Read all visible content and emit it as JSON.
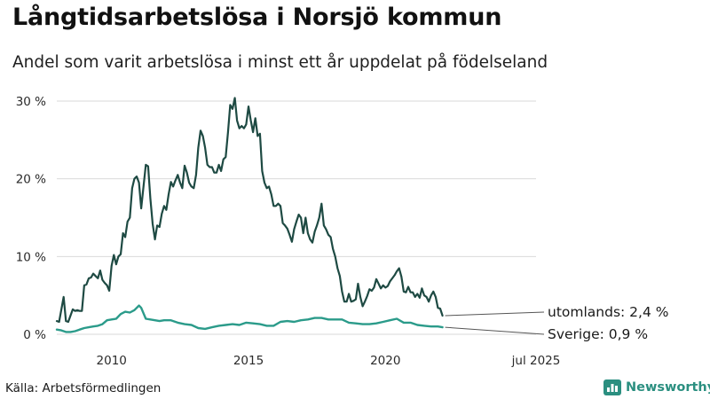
{
  "header": {
    "title": "Långtidsarbetslösa i Norsjö kommun",
    "subtitle": "Andel som varit arbetslösa i minst ett år uppdelat på födelseland"
  },
  "footer": {
    "source": "Källa: Arbetsförmedlingen",
    "brand": "Newsworthy"
  },
  "colors": {
    "utomlands": "#1e4a43",
    "sverige": "#2b9b8a",
    "grid": "#d9d9d9",
    "brand": "#2b8f80"
  },
  "chart_data": {
    "type": "line",
    "x_range": [
      "2008-01",
      "2025-07"
    ],
    "ylim": [
      0,
      32
    ],
    "y_ticks": [
      {
        "value": 0,
        "label": "0 %"
      },
      {
        "value": 10,
        "label": "10 %"
      },
      {
        "value": 20,
        "label": "20 %"
      },
      {
        "value": 30,
        "label": "30 %"
      }
    ],
    "x_ticks": [
      {
        "value": "2010-01",
        "label": "2010"
      },
      {
        "value": "2015-01",
        "label": "2015"
      },
      {
        "value": "2020-01",
        "label": "2020"
      },
      {
        "value": "2025-07",
        "label": "jul 2025"
      }
    ],
    "grid": "horizontal",
    "series": [
      {
        "key": "utomlands",
        "end_label": "utomlands: 2,4 %",
        "points": [
          [
            "2008-01",
            1.7
          ],
          [
            "2008-02",
            1.6
          ],
          [
            "2008-04",
            4.8
          ],
          [
            "2008-05",
            1.7
          ],
          [
            "2008-06",
            1.6
          ],
          [
            "2008-08",
            3.2
          ],
          [
            "2008-09",
            3.0
          ],
          [
            "2008-10",
            3.1
          ],
          [
            "2008-11",
            3.0
          ],
          [
            "2008-12",
            3.0
          ],
          [
            "2009-01",
            6.3
          ],
          [
            "2009-02",
            6.4
          ],
          [
            "2009-03",
            7.2
          ],
          [
            "2009-04",
            7.3
          ],
          [
            "2009-05",
            7.8
          ],
          [
            "2009-06",
            7.5
          ],
          [
            "2009-07",
            7.2
          ],
          [
            "2009-08",
            8.2
          ],
          [
            "2009-09",
            7.0
          ],
          [
            "2009-10",
            6.6
          ],
          [
            "2009-11",
            6.3
          ],
          [
            "2009-12",
            5.6
          ],
          [
            "2010-01",
            8.8
          ],
          [
            "2010-02",
            10.2
          ],
          [
            "2010-03",
            9.0
          ],
          [
            "2010-04",
            10.0
          ],
          [
            "2010-05",
            10.3
          ],
          [
            "2010-06",
            13.0
          ],
          [
            "2010-07",
            12.5
          ],
          [
            "2010-08",
            14.5
          ],
          [
            "2010-09",
            15.0
          ],
          [
            "2010-10",
            18.8
          ],
          [
            "2010-11",
            20.0
          ],
          [
            "2010-12",
            20.3
          ],
          [
            "2011-01",
            19.5
          ],
          [
            "2011-02",
            16.2
          ],
          [
            "2011-03",
            19.0
          ],
          [
            "2011-04",
            21.8
          ],
          [
            "2011-05",
            21.6
          ],
          [
            "2011-06",
            17.5
          ],
          [
            "2011-07",
            14.2
          ],
          [
            "2011-08",
            12.2
          ],
          [
            "2011-09",
            14.0
          ],
          [
            "2011-10",
            13.8
          ],
          [
            "2011-11",
            15.5
          ],
          [
            "2011-12",
            16.5
          ],
          [
            "2012-01",
            16.0
          ],
          [
            "2012-02",
            18.0
          ],
          [
            "2012-03",
            19.6
          ],
          [
            "2012-04",
            19.0
          ],
          [
            "2012-05",
            19.8
          ],
          [
            "2012-06",
            20.5
          ],
          [
            "2012-07",
            19.5
          ],
          [
            "2012-08",
            18.8
          ],
          [
            "2012-09",
            21.7
          ],
          [
            "2012-10",
            20.8
          ],
          [
            "2012-11",
            19.5
          ],
          [
            "2012-12",
            19.0
          ],
          [
            "2013-01",
            18.8
          ],
          [
            "2013-02",
            20.5
          ],
          [
            "2013-03",
            24.0
          ],
          [
            "2013-04",
            26.2
          ],
          [
            "2013-05",
            25.5
          ],
          [
            "2013-06",
            24.0
          ],
          [
            "2013-07",
            21.8
          ],
          [
            "2013-08",
            21.5
          ],
          [
            "2013-09",
            21.5
          ],
          [
            "2013-10",
            20.8
          ],
          [
            "2013-11",
            20.8
          ],
          [
            "2013-12",
            21.8
          ],
          [
            "2014-01",
            21.0
          ],
          [
            "2014-02",
            22.5
          ],
          [
            "2014-03",
            22.8
          ],
          [
            "2014-04",
            26.0
          ],
          [
            "2014-05",
            29.5
          ],
          [
            "2014-06",
            29.0
          ],
          [
            "2014-07",
            30.4
          ],
          [
            "2014-08",
            27.5
          ],
          [
            "2014-09",
            26.5
          ],
          [
            "2014-10",
            26.8
          ],
          [
            "2014-11",
            26.5
          ],
          [
            "2014-12",
            27.0
          ],
          [
            "2015-01",
            29.3
          ],
          [
            "2015-02",
            27.5
          ],
          [
            "2015-03",
            26.0
          ],
          [
            "2015-04",
            27.8
          ],
          [
            "2015-05",
            25.5
          ],
          [
            "2015-06",
            25.8
          ],
          [
            "2015-07",
            21.0
          ],
          [
            "2015-08",
            19.5
          ],
          [
            "2015-09",
            18.8
          ],
          [
            "2015-10",
            19.0
          ],
          [
            "2015-11",
            18.0
          ],
          [
            "2015-12",
            16.5
          ],
          [
            "2016-01",
            16.5
          ],
          [
            "2016-02",
            16.8
          ],
          [
            "2016-03",
            16.5
          ],
          [
            "2016-04",
            14.3
          ],
          [
            "2016-05",
            14.0
          ],
          [
            "2016-06",
            13.6
          ],
          [
            "2016-07",
            12.8
          ],
          [
            "2016-08",
            11.9
          ],
          [
            "2016-09",
            13.5
          ],
          [
            "2016-10",
            14.5
          ],
          [
            "2016-11",
            15.4
          ],
          [
            "2016-12",
            15.0
          ],
          [
            "2017-01",
            13.0
          ],
          [
            "2017-02",
            15.0
          ],
          [
            "2017-03",
            13.0
          ],
          [
            "2017-04",
            12.2
          ],
          [
            "2017-05",
            11.8
          ],
          [
            "2017-06",
            13.2
          ],
          [
            "2017-07",
            14.0
          ],
          [
            "2017-08",
            15.0
          ],
          [
            "2017-09",
            16.8
          ],
          [
            "2017-10",
            14.0
          ],
          [
            "2017-11",
            13.5
          ],
          [
            "2017-12",
            12.8
          ],
          [
            "2018-01",
            12.5
          ],
          [
            "2018-02",
            11.0
          ],
          [
            "2018-03",
            10.0
          ],
          [
            "2018-04",
            8.5
          ],
          [
            "2018-05",
            7.5
          ],
          [
            "2018-06",
            5.5
          ],
          [
            "2018-07",
            4.2
          ],
          [
            "2018-08",
            4.2
          ],
          [
            "2018-09",
            5.2
          ],
          [
            "2018-10",
            4.2
          ],
          [
            "2018-11",
            4.3
          ],
          [
            "2018-12",
            4.5
          ],
          [
            "2019-01",
            6.5
          ],
          [
            "2019-02",
            4.8
          ],
          [
            "2019-03",
            3.6
          ],
          [
            "2019-04",
            4.2
          ],
          [
            "2019-05",
            4.9
          ],
          [
            "2019-06",
            5.8
          ],
          [
            "2019-07",
            5.6
          ],
          [
            "2019-08",
            6.0
          ],
          [
            "2019-09",
            7.1
          ],
          [
            "2019-10",
            6.5
          ],
          [
            "2019-11",
            5.9
          ],
          [
            "2019-12",
            6.3
          ],
          [
            "2020-01",
            6.0
          ],
          [
            "2020-02",
            6.2
          ],
          [
            "2020-03",
            6.8
          ],
          [
            "2020-04",
            7.2
          ],
          [
            "2020-05",
            7.6
          ],
          [
            "2020-06",
            8.1
          ],
          [
            "2020-07",
            8.5
          ],
          [
            "2020-08",
            7.4
          ],
          [
            "2020-09",
            5.5
          ],
          [
            "2020-10",
            5.4
          ],
          [
            "2020-11",
            6.1
          ],
          [
            "2020-12",
            5.4
          ],
          [
            "2021-01",
            5.4
          ],
          [
            "2021-02",
            4.8
          ],
          [
            "2021-03",
            5.2
          ],
          [
            "2021-04",
            4.7
          ],
          [
            "2021-05",
            5.9
          ],
          [
            "2021-06",
            5.0
          ],
          [
            "2021-07",
            4.8
          ],
          [
            "2021-08",
            4.2
          ],
          [
            "2021-09",
            5.0
          ],
          [
            "2021-10",
            5.5
          ],
          [
            "2021-11",
            4.8
          ],
          [
            "2021-12",
            3.4
          ],
          [
            "2022-01",
            3.3
          ],
          [
            "2022-02",
            2.4
          ]
        ]
      },
      {
        "key": "sverige",
        "end_label": "Sverige: 0,9 %",
        "points": [
          [
            "2008-01",
            0.6
          ],
          [
            "2008-03",
            0.5
          ],
          [
            "2008-05",
            0.3
          ],
          [
            "2008-07",
            0.3
          ],
          [
            "2008-09",
            0.4
          ],
          [
            "2008-11",
            0.6
          ],
          [
            "2009-01",
            0.8
          ],
          [
            "2009-03",
            0.9
          ],
          [
            "2009-05",
            1.0
          ],
          [
            "2009-07",
            1.1
          ],
          [
            "2009-09",
            1.3
          ],
          [
            "2009-11",
            1.8
          ],
          [
            "2010-01",
            1.9
          ],
          [
            "2010-03",
            2.0
          ],
          [
            "2010-05",
            2.6
          ],
          [
            "2010-07",
            2.9
          ],
          [
            "2010-09",
            2.8
          ],
          [
            "2010-11",
            3.1
          ],
          [
            "2011-01",
            3.7
          ],
          [
            "2011-02",
            3.4
          ],
          [
            "2011-04",
            2.0
          ],
          [
            "2011-06",
            1.9
          ],
          [
            "2011-08",
            1.8
          ],
          [
            "2011-10",
            1.7
          ],
          [
            "2011-12",
            1.8
          ],
          [
            "2012-03",
            1.8
          ],
          [
            "2012-06",
            1.5
          ],
          [
            "2012-09",
            1.3
          ],
          [
            "2012-12",
            1.2
          ],
          [
            "2013-03",
            0.8
          ],
          [
            "2013-06",
            0.7
          ],
          [
            "2013-09",
            0.9
          ],
          [
            "2013-12",
            1.1
          ],
          [
            "2014-03",
            1.2
          ],
          [
            "2014-06",
            1.3
          ],
          [
            "2014-09",
            1.2
          ],
          [
            "2014-12",
            1.5
          ],
          [
            "2015-03",
            1.4
          ],
          [
            "2015-06",
            1.3
          ],
          [
            "2015-09",
            1.1
          ],
          [
            "2015-12",
            1.1
          ],
          [
            "2016-03",
            1.6
          ],
          [
            "2016-06",
            1.7
          ],
          [
            "2016-09",
            1.6
          ],
          [
            "2016-12",
            1.8
          ],
          [
            "2017-03",
            1.9
          ],
          [
            "2017-06",
            2.1
          ],
          [
            "2017-09",
            2.1
          ],
          [
            "2017-12",
            1.9
          ],
          [
            "2018-03",
            1.9
          ],
          [
            "2018-06",
            1.9
          ],
          [
            "2018-09",
            1.5
          ],
          [
            "2018-12",
            1.4
          ],
          [
            "2019-03",
            1.3
          ],
          [
            "2019-06",
            1.3
          ],
          [
            "2019-09",
            1.4
          ],
          [
            "2019-12",
            1.6
          ],
          [
            "2020-03",
            1.8
          ],
          [
            "2020-06",
            2.0
          ],
          [
            "2020-09",
            1.5
          ],
          [
            "2020-12",
            1.5
          ],
          [
            "2021-03",
            1.2
          ],
          [
            "2021-06",
            1.1
          ],
          [
            "2021-09",
            1.0
          ],
          [
            "2021-12",
            1.0
          ],
          [
            "2022-02",
            0.9
          ]
        ]
      }
    ]
  }
}
